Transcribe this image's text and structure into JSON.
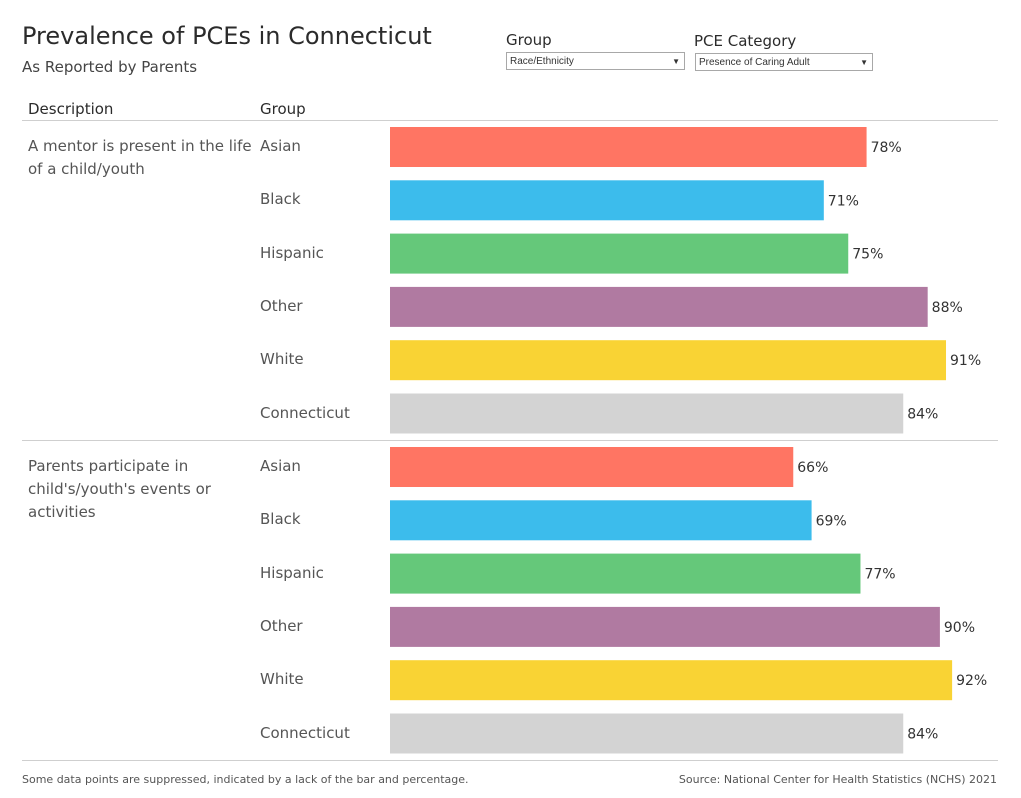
{
  "header": {
    "title": "Prevalence of PCEs in Connecticut",
    "subtitle": "As Reported by Parents"
  },
  "filters": {
    "group": {
      "label": "Group",
      "value": "Race/Ethnicity"
    },
    "category": {
      "label": "PCE Category",
      "value": "Presence of Caring Adult"
    }
  },
  "columns": {
    "description": "Description",
    "group": "Group"
  },
  "footer": {
    "note": "Some data points are suppressed, indicated by a lack of the bar and percentage.",
    "source": "Source: National Center for Health Statistics (NCHS) 2021"
  },
  "colors": {
    "Asian": "#ff7563",
    "Black": "#3cbcec",
    "Hispanic": "#65c87a",
    "Other": "#b07aa1",
    "White": "#f9d334",
    "Connecticut": "#d3d3d3"
  },
  "chart_data": {
    "type": "bar",
    "orientation": "horizontal",
    "xlim": [
      0,
      100
    ],
    "value_format": "percent",
    "groups": [
      "Asian",
      "Black",
      "Hispanic",
      "Other",
      "White",
      "Connecticut"
    ],
    "panels": [
      {
        "description": "A mentor is present in the life of a child/youth",
        "values": [
          78,
          71,
          75,
          88,
          91,
          84
        ]
      },
      {
        "description": "Parents participate in child's/youth's events or activities",
        "values": [
          66,
          69,
          77,
          90,
          92,
          84
        ]
      }
    ]
  }
}
